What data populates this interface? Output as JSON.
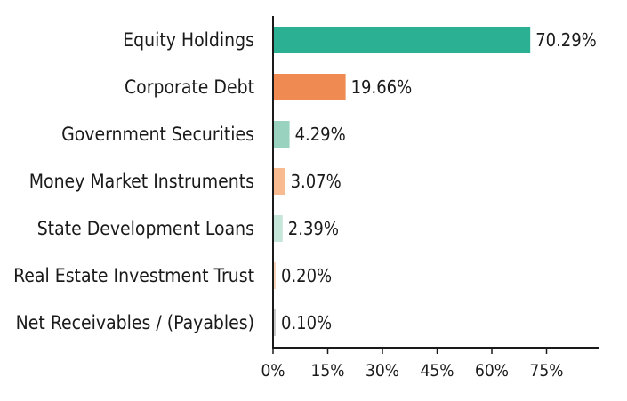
{
  "chart_data": {
    "type": "bar",
    "orientation": "horizontal",
    "categories": [
      "Equity Holdings",
      "Corporate Debt",
      "Government Securities",
      "Money Market Instruments",
      "State Development Loans",
      "Real Estate Investment Trust",
      "Net Receivables / (Payables)"
    ],
    "values": [
      70.29,
      19.66,
      4.29,
      3.07,
      2.39,
      0.2,
      0.1
    ],
    "value_labels": [
      "70.29%",
      "19.66%",
      "4.29%",
      "3.07%",
      "2.39%",
      "0.20%",
      "0.10%"
    ],
    "colors": [
      "#2bb094",
      "#ee8a52",
      "#99d3bf",
      "#f7bb8f",
      "#c6e6da",
      "#fad4bb",
      "#cccccc"
    ],
    "xticks": [
      0,
      15,
      30,
      45,
      60,
      75
    ],
    "xtick_labels": [
      "0%",
      "15%",
      "30%",
      "45%",
      "60%",
      "75%"
    ],
    "xlim": [
      0,
      85
    ],
    "grid": false,
    "title": "",
    "xlabel": "",
    "ylabel": ""
  }
}
